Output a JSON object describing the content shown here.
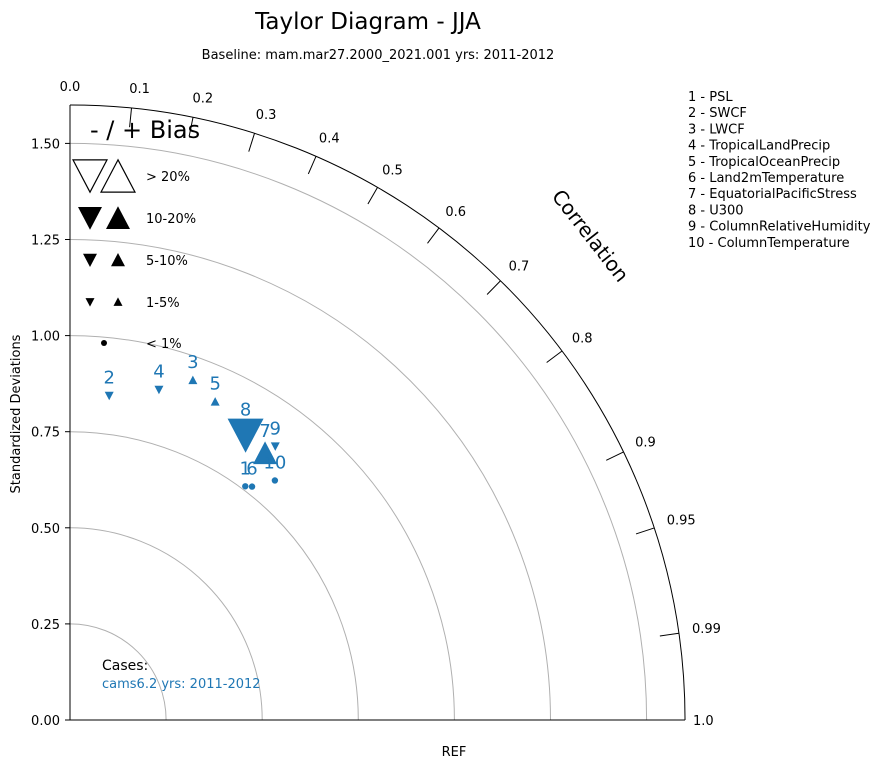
{
  "chart_data": {
    "type": "taylor",
    "title": "Taylor Diagram - JJA",
    "subtitle": "Baseline: mam.mar27.2000_2021.001  yrs: 2011-2012",
    "ylabel": "Standardized Deviations",
    "xlabel": "REF",
    "corr_axis_label": "Correlation",
    "std_range": [
      0,
      1.6
    ],
    "std_ticks": [
      0.0,
      0.25,
      0.5,
      0.75,
      1.0,
      1.25,
      1.5
    ],
    "std_tick_labels": [
      "0.00",
      "0.25",
      "0.50",
      "0.75",
      "1.00",
      "1.25",
      "1.50"
    ],
    "std_circles": [
      0.25,
      0.5,
      0.75,
      1.0,
      1.25,
      1.5
    ],
    "corr_ticks": [
      0.0,
      0.1,
      0.2,
      0.3,
      0.4,
      0.5,
      0.6,
      0.7,
      0.8,
      0.9,
      0.95,
      0.99,
      1.0
    ],
    "corr_tick_labels": [
      "0.0",
      "0.1",
      "0.2",
      "0.3",
      "0.4",
      "0.5",
      "0.6",
      "0.7",
      "0.8",
      "0.9",
      "0.95",
      "0.99",
      "1.0"
    ],
    "bias_legend": {
      "title": "- / + Bias",
      "entries": [
        {
          "label": "> 20%",
          "size": "xl"
        },
        {
          "label": "10-20%",
          "size": "lg"
        },
        {
          "label": "5-10%",
          "size": "md"
        },
        {
          "label": "1-5%",
          "size": "sm"
        },
        {
          "label": "< 1%",
          "size": "dot"
        }
      ]
    },
    "variables": [
      "1 - PSL",
      "2 - SWCF",
      "3 - LWCF",
      "4 - TropicalLandPrecip",
      "5 - TropicalOceanPrecip",
      "6 - Land2mTemperature",
      "7 - EquatorialPacificStress",
      "8 - U300",
      "9 - ColumnRelativeHumidity",
      "10 - ColumnTemperature"
    ],
    "cases_label": "Cases:",
    "case_name": "cams6.2  yrs: 2011-2012",
    "series_color": "#1f77b4",
    "points": [
      {
        "id": "1",
        "std": 0.76,
        "corr": 0.6,
        "marker": "dot"
      },
      {
        "id": "2",
        "std": 0.85,
        "corr": 0.12,
        "marker": "down",
        "size": "sm"
      },
      {
        "id": "3",
        "std": 0.94,
        "corr": 0.34,
        "marker": "up",
        "size": "sm"
      },
      {
        "id": "4",
        "std": 0.89,
        "corr": 0.26,
        "marker": "down",
        "size": "sm"
      },
      {
        "id": "5",
        "std": 0.91,
        "corr": 0.415,
        "marker": "up",
        "size": "sm"
      },
      {
        "id": "6",
        "std": 0.77,
        "corr": 0.615,
        "marker": "dot"
      },
      {
        "id": "7",
        "std": 0.86,
        "corr": 0.59,
        "marker": "up",
        "size": "lg"
      },
      {
        "id": "8",
        "std": 0.87,
        "corr": 0.525,
        "marker": "down",
        "size": "xl"
      },
      {
        "id": "9",
        "std": 0.89,
        "corr": 0.6,
        "marker": "down",
        "size": "sm"
      },
      {
        "id": "10",
        "std": 0.82,
        "corr": 0.65,
        "marker": "dot"
      }
    ]
  }
}
